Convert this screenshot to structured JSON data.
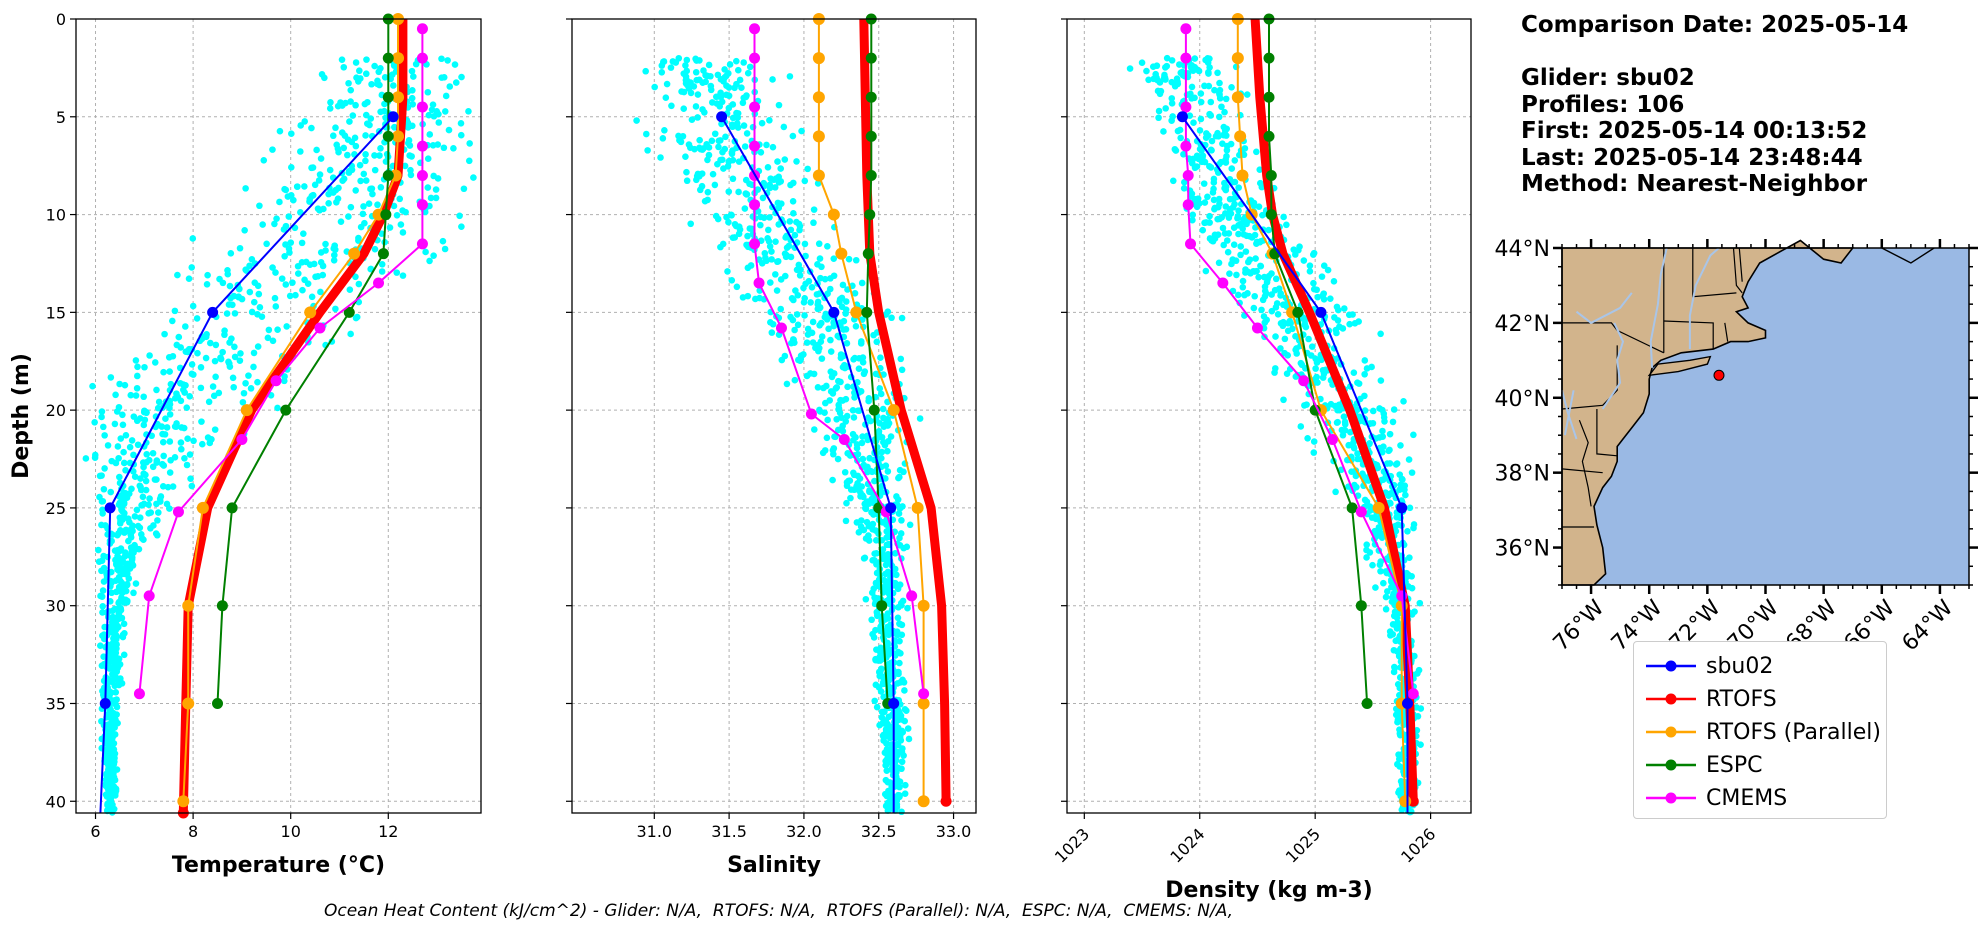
{
  "info": {
    "comparison_date": "Comparison Date: 2025-05-14",
    "glider": "Glider: sbu02",
    "profiles": "Profiles: 106",
    "first": "First: 2025-05-14 00:13:52",
    "last": "Last: 2025-05-14 23:48:44",
    "method": "Method: Nearest-Neighbor"
  },
  "footer": "Ocean Heat Content (kJ/cm^2) - Glider: N/A,  RTOFS: N/A,  RTOFS (Parallel): N/A,  ESPC: N/A,  CMEMS: N/A,",
  "colors": {
    "glider_points": "#00ffff",
    "sbu02": "#0000ff",
    "RTOFS": "#ff0000",
    "RTOFS (Parallel)": "#ffa500",
    "ESPC": "#008000",
    "CMEMS": "#ff00ff",
    "land": "#d2b48c",
    "ocean": "#9ab9e4"
  },
  "legend": [
    {
      "label": "sbu02",
      "color": "#0000ff"
    },
    {
      "label": "RTOFS",
      "color": "#ff0000"
    },
    {
      "label": "RTOFS (Parallel)",
      "color": "#ffa500"
    },
    {
      "label": "ESPC",
      "color": "#008000"
    },
    {
      "label": "CMEMS",
      "color": "#ff00ff"
    }
  ],
  "chart_data": [
    {
      "type": "line",
      "xlabel": "Temperature (°C)",
      "ylabel": "Depth (m)",
      "xlim": [
        5.6,
        13.9
      ],
      "ylim": [
        40.6,
        0
      ],
      "xticks": [
        6,
        8,
        10,
        12
      ],
      "yticks": [
        0,
        5,
        10,
        15,
        20,
        25,
        30,
        35,
        40
      ],
      "grid": true,
      "series": [
        {
          "name": "sbu02",
          "depth": [
            5,
            15,
            25,
            35,
            40.6
          ],
          "values": [
            12.1,
            8.4,
            6.3,
            6.2,
            6.1
          ]
        },
        {
          "name": "RTOFS",
          "depth": [
            0,
            2,
            4,
            6,
            8,
            10,
            12,
            15,
            20,
            25,
            30,
            35,
            40.6
          ],
          "values": [
            12.3,
            12.3,
            12.3,
            12.25,
            12.2,
            11.9,
            11.5,
            10.6,
            9.2,
            8.3,
            7.9,
            7.85,
            7.8
          ]
        },
        {
          "name": "RTOFS (Parallel)",
          "depth": [
            0,
            2,
            4,
            6,
            8,
            10,
            12,
            15,
            20,
            25,
            30,
            35,
            40
          ],
          "values": [
            12.2,
            12.2,
            12.2,
            12.2,
            12.15,
            11.8,
            11.3,
            10.4,
            9.1,
            8.2,
            7.9,
            7.9,
            7.8
          ]
        },
        {
          "name": "ESPC",
          "depth": [
            0,
            2,
            4,
            6,
            8,
            10,
            12,
            15,
            20,
            25,
            30,
            35
          ],
          "values": [
            12.0,
            12.0,
            12.0,
            12.0,
            12.0,
            11.95,
            11.9,
            11.2,
            9.9,
            8.8,
            8.6,
            8.5
          ]
        },
        {
          "name": "CMEMS",
          "depth": [
            0.5,
            2,
            4.5,
            6.5,
            8,
            9.5,
            11.5,
            13.5,
            15.8,
            18.5,
            21.5,
            25.2,
            29.5,
            34.5
          ],
          "values": [
            12.7,
            12.7,
            12.7,
            12.7,
            12.7,
            12.7,
            12.7,
            11.8,
            10.6,
            9.7,
            9.0,
            7.7,
            7.1,
            6.9
          ]
        }
      ]
    },
    {
      "type": "line",
      "xlabel": "Salinity",
      "xlim": [
        30.45,
        33.15
      ],
      "ylim": [
        40.6,
        0
      ],
      "xticks": [
        "31.0",
        "31.5",
        "32.0",
        "32.5",
        "33.0"
      ],
      "grid": true,
      "series": [
        {
          "name": "sbu02",
          "depth": [
            5,
            15,
            25,
            35,
            40.6
          ],
          "values": [
            31.45,
            32.2,
            32.58,
            32.6,
            32.6
          ]
        },
        {
          "name": "RTOFS",
          "depth": [
            0,
            4,
            8,
            12,
            15,
            20,
            25,
            30,
            35,
            40
          ],
          "values": [
            32.4,
            32.41,
            32.42,
            32.44,
            32.5,
            32.65,
            32.85,
            32.92,
            32.94,
            32.95
          ]
        },
        {
          "name": "RTOFS (Parallel)",
          "depth": [
            0,
            2,
            4,
            6,
            8,
            10,
            12,
            15,
            20,
            25,
            30,
            35,
            40
          ],
          "values": [
            32.1,
            32.1,
            32.1,
            32.1,
            32.1,
            32.2,
            32.25,
            32.35,
            32.6,
            32.76,
            32.8,
            32.8,
            32.8
          ]
        },
        {
          "name": "ESPC",
          "depth": [
            0,
            2,
            4,
            6,
            8,
            10,
            12,
            15,
            20,
            25,
            30,
            35
          ],
          "values": [
            32.45,
            32.45,
            32.45,
            32.45,
            32.45,
            32.44,
            32.43,
            32.42,
            32.47,
            32.5,
            32.52,
            32.56
          ]
        },
        {
          "name": "CMEMS",
          "depth": [
            0.5,
            2,
            4.5,
            6.5,
            8,
            9.5,
            11.5,
            13.5,
            15.8,
            20.2,
            21.5,
            25.2,
            29.5,
            34.5
          ],
          "values": [
            31.67,
            31.67,
            31.67,
            31.67,
            31.67,
            31.67,
            31.67,
            31.7,
            31.85,
            32.05,
            32.27,
            32.55,
            32.72,
            32.8
          ]
        }
      ]
    },
    {
      "type": "line",
      "xlabel": "Density (kg m-3)",
      "xlim": [
        1022.85,
        1026.35
      ],
      "ylim": [
        40.6,
        0
      ],
      "xticks": [
        "1023",
        "1024",
        "1025",
        "1026"
      ],
      "grid": true,
      "series": [
        {
          "name": "sbu02",
          "depth": [
            5,
            15,
            25,
            35,
            40.6
          ],
          "values": [
            1023.85,
            1025.05,
            1025.75,
            1025.8,
            1025.8
          ]
        },
        {
          "name": "RTOFS",
          "depth": [
            0,
            4,
            8,
            10,
            12,
            15,
            20,
            25,
            30,
            35,
            40
          ],
          "values": [
            1024.48,
            1024.52,
            1024.58,
            1024.63,
            1024.72,
            1024.95,
            1025.3,
            1025.6,
            1025.78,
            1025.82,
            1025.85
          ]
        },
        {
          "name": "RTOFS (Parallel)",
          "depth": [
            0,
            2,
            4,
            6,
            8,
            10,
            12,
            15,
            20,
            25,
            30,
            35,
            40
          ],
          "values": [
            1024.33,
            1024.33,
            1024.33,
            1024.35,
            1024.37,
            1024.45,
            1024.63,
            1024.8,
            1025.05,
            1025.55,
            1025.75,
            1025.75,
            1025.78
          ]
        },
        {
          "name": "ESPC",
          "depth": [
            0,
            2,
            4,
            6,
            8,
            10,
            12,
            15,
            20,
            25,
            30,
            35
          ],
          "values": [
            1024.6,
            1024.6,
            1024.6,
            1024.6,
            1024.62,
            1024.62,
            1024.65,
            1024.85,
            1025.0,
            1025.32,
            1025.4,
            1025.45
          ]
        },
        {
          "name": "CMEMS",
          "depth": [
            0.5,
            2,
            4.5,
            6.5,
            8,
            9.5,
            11.5,
            13.5,
            15.8,
            18.5,
            21.5,
            25.2,
            29.5,
            34.5
          ],
          "values": [
            1023.88,
            1023.88,
            1023.88,
            1023.88,
            1023.9,
            1023.9,
            1023.92,
            1024.2,
            1024.5,
            1024.9,
            1025.15,
            1025.4,
            1025.75,
            1025.85
          ]
        }
      ]
    },
    {
      "type": "map",
      "lat_range": [
        35,
        44
      ],
      "lon_range": [
        -77,
        -63
      ],
      "lat_ticks": [
        "44°N",
        "42°N",
        "40°N",
        "38°N",
        "36°N"
      ],
      "lat_values": [
        44,
        42,
        40,
        38,
        36
      ],
      "lon_ticks": [
        "76°W",
        "74°W",
        "72°W",
        "70°W",
        "68°W",
        "66°W",
        "64°W"
      ],
      "lon_values": [
        -76,
        -74,
        -72,
        -70,
        -68,
        -66,
        -64
      ],
      "glider_location": {
        "lat": 40.6,
        "lon": -71.6
      }
    }
  ]
}
